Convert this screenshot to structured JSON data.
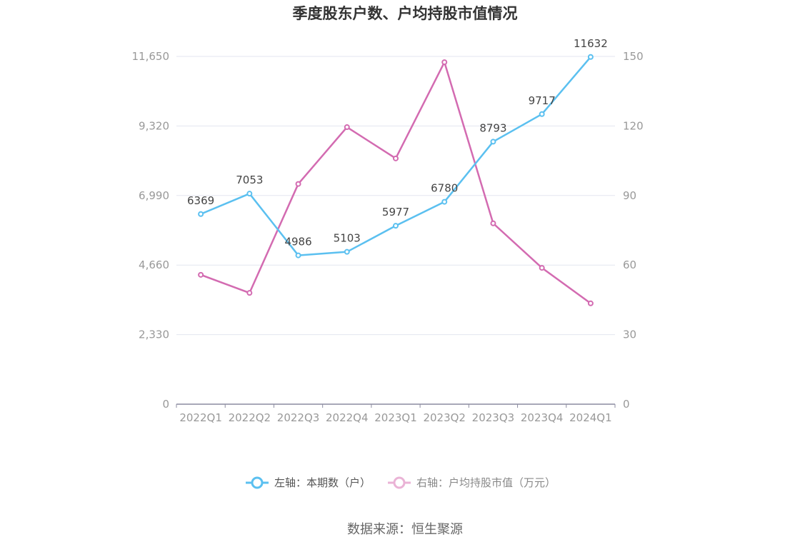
{
  "chart_data": {
    "type": "line",
    "title": "季度股东户数、户均持股市值情况",
    "categories": [
      "2022Q1",
      "2022Q2",
      "2022Q3",
      "2022Q4",
      "2023Q1",
      "2023Q2",
      "2023Q3",
      "2023Q4",
      "2024Q1"
    ],
    "left_axis": {
      "ticks": [
        "0",
        "2,330",
        "4,660",
        "6,990",
        "9,320",
        "11,650"
      ],
      "ylim": [
        0,
        11650
      ]
    },
    "right_axis": {
      "ticks": [
        "0",
        "30",
        "60",
        "90",
        "120",
        "150"
      ],
      "ylim": [
        0,
        150
      ]
    },
    "series": [
      {
        "name": "左轴：本期数（户）",
        "axis": "left",
        "color": "#5bc0f0",
        "values": [
          6369,
          7053,
          4986,
          5103,
          5977,
          6780,
          8793,
          9717,
          11632
        ],
        "labels": [
          "6369",
          "7053",
          "4986",
          "5103",
          "5977",
          "6780",
          "8793",
          "9717",
          "11632"
        ]
      },
      {
        "name": "右轴：户均持股市值（万元）",
        "axis": "right",
        "color": "#d36bb1",
        "values": [
          55.8,
          48.0,
          95.0,
          119.5,
          106.0,
          147.5,
          78.0,
          58.8,
          43.5
        ]
      }
    ],
    "grid": true,
    "legend_position": "bottom"
  },
  "source": "数据来源：恒生聚源"
}
